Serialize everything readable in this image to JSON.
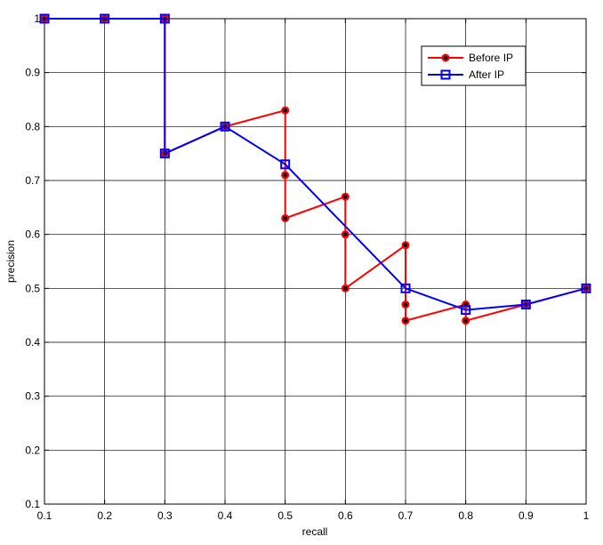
{
  "chart_data": {
    "type": "line",
    "title": "",
    "xlabel": "recall",
    "ylabel": "precision",
    "xlim": [
      0.1,
      1
    ],
    "ylim": [
      0.1,
      1
    ],
    "xticks": [
      "0.1",
      "0.2",
      "0.3",
      "0.4",
      "0.5",
      "0.6",
      "0.7",
      "0.8",
      "0.9",
      "1"
    ],
    "yticks": [
      "0.1",
      "0.2",
      "0.3",
      "0.4",
      "0.5",
      "0.6",
      "0.7",
      "0.8",
      "0.9",
      "1"
    ],
    "grid": true,
    "legend_position": "top-right",
    "series": [
      {
        "name": "Before IP",
        "color": "#ff0000",
        "marker": "filled-circle",
        "x": [
          0.1,
          0.2,
          0.3,
          0.3,
          0.4,
          0.5,
          0.5,
          0.5,
          0.6,
          0.6,
          0.6,
          0.7,
          0.7,
          0.7,
          0.8,
          0.8,
          0.9,
          1.0
        ],
        "y": [
          1.0,
          1.0,
          1.0,
          0.75,
          0.8,
          0.83,
          0.71,
          0.63,
          0.67,
          0.6,
          0.5,
          0.58,
          0.47,
          0.44,
          0.47,
          0.44,
          0.47,
          0.5
        ]
      },
      {
        "name": "After IP",
        "color": "#0000ff",
        "marker": "open-square",
        "x": [
          0.1,
          0.2,
          0.3,
          0.3,
          0.4,
          0.5,
          0.7,
          0.8,
          0.9,
          1.0
        ],
        "y": [
          1.0,
          1.0,
          1.0,
          0.75,
          0.8,
          0.73,
          0.5,
          0.46,
          0.47,
          0.5
        ]
      }
    ]
  }
}
